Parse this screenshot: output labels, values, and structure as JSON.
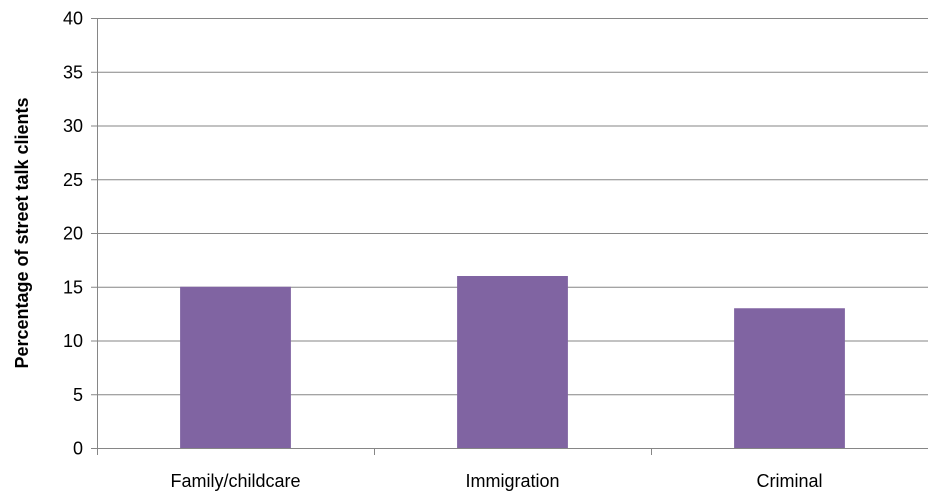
{
  "chart_data": {
    "type": "bar",
    "title": "",
    "xlabel": "",
    "ylabel": "Percentage of street talk clients",
    "categories": [
      "Family/childcare",
      "Immigration",
      "Criminal"
    ],
    "values": [
      15,
      16,
      13
    ],
    "ylim": [
      0,
      40
    ],
    "yticks": [
      "0",
      "5",
      "10",
      "15",
      "20",
      "25",
      "30",
      "35",
      "40"
    ],
    "grid": true,
    "legend": "none",
    "colors": {
      "bar": "#8064A2",
      "grid": "#868686",
      "axis": "#868686"
    }
  }
}
